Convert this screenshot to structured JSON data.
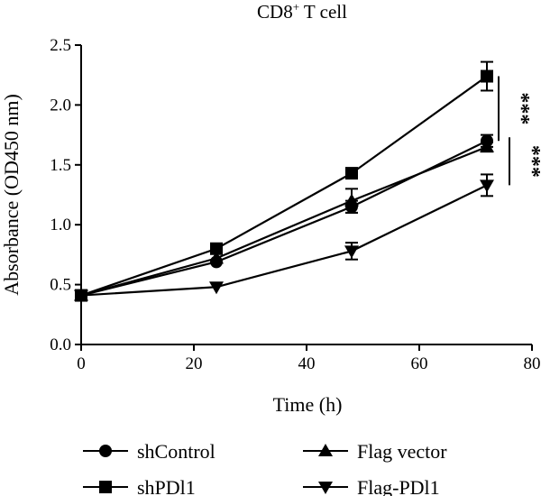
{
  "chart_data": {
    "type": "line",
    "title_main": "CD8",
    "title_sup": "+",
    "title_rest": " T cell",
    "xlabel": "Time (h)",
    "ylabel": "Absorbance (OD450 nm)",
    "xlim": [
      0,
      80
    ],
    "ylim": [
      0,
      2.5
    ],
    "xticks": [
      0,
      20,
      40,
      60,
      80
    ],
    "yticks": [
      0.0,
      0.5,
      1.0,
      1.5,
      2.0,
      2.5
    ],
    "ytick_labels": [
      "0.0",
      "0.5",
      "1.0",
      "1.5",
      "2.0",
      "2.5"
    ],
    "grid": false,
    "legend_position": "bottom",
    "x": [
      0,
      24,
      48,
      72
    ],
    "series": [
      {
        "name": "shControl",
        "marker": "circle",
        "values": [
          0.41,
          0.69,
          1.15,
          1.7
        ],
        "errors": [
          0.03,
          0.02,
          0.05,
          0.05
        ]
      },
      {
        "name": "shPDl1",
        "marker": "square",
        "values": [
          0.41,
          0.8,
          1.43,
          2.24
        ],
        "errors": [
          0.03,
          0.03,
          0.04,
          0.12
        ]
      },
      {
        "name": "Flag vector",
        "marker": "triangle-up",
        "values": [
          0.41,
          0.72,
          1.2,
          1.65
        ],
        "errors": [
          0.03,
          0.02,
          0.1,
          0.04
        ]
      },
      {
        "name": "Flag-PDl1",
        "marker": "triangle-down",
        "values": [
          0.41,
          0.48,
          0.78,
          1.33
        ],
        "errors": [
          0.03,
          0.02,
          0.07,
          0.09
        ]
      }
    ],
    "significance": [
      {
        "label": "***",
        "between": [
          "shControl",
          "shPDl1"
        ],
        "from": 1.7,
        "to": 2.24
      },
      {
        "label": "***",
        "between": [
          "Flag vector",
          "Flag-PDl1"
        ],
        "from": 1.33,
        "to": 1.73
      }
    ],
    "color": "#000000"
  }
}
